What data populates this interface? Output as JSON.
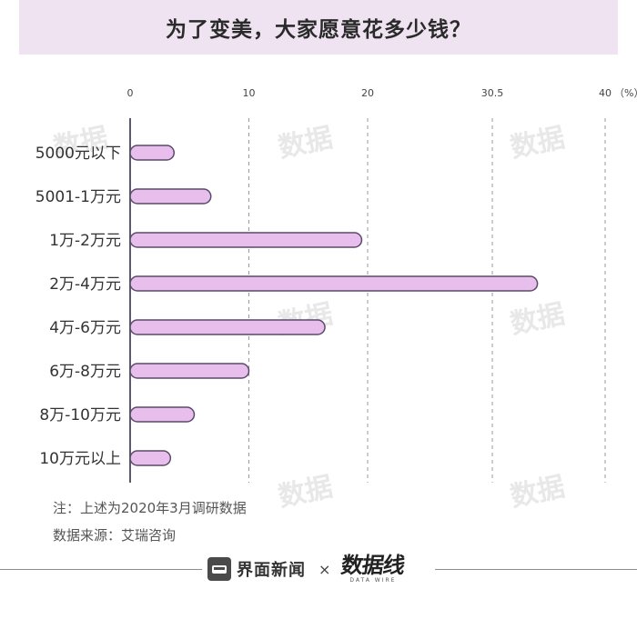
{
  "title": "为了变美，大家愿意花多少钱？",
  "chart_data": {
    "type": "bar",
    "orientation": "horizontal",
    "categories": [
      "5000元以下",
      "5001-1万元",
      "1万-2万元",
      "2万-4万元",
      "4万-6万元",
      "6万-8万元",
      "8万-10万元",
      "10万元以上"
    ],
    "values": [
      3.7,
      6.8,
      19.5,
      34.3,
      16.4,
      10.0,
      5.4,
      3.4
    ],
    "xlim": [
      0,
      40
    ],
    "x_ticks": [
      0,
      10,
      20,
      30.5,
      40
    ],
    "x_tick_labels": [
      "0",
      "10",
      "20",
      "30.5",
      "40"
    ],
    "x_unit": "（%）",
    "grid": "vertical dashed",
    "bar_color": "#e8bfec",
    "bar_stroke": "#5a4a6a"
  },
  "notes": {
    "note": "注：上述为2020年3月调研数据",
    "source": "数据来源：艾瑞咨询"
  },
  "footer": {
    "brand": "界面新闻",
    "times": "×",
    "logo": "数据线",
    "logo_sub": "DATA WIRE"
  },
  "colors": {
    "banner": "#efe2f1",
    "axis": "#5a5a6a"
  }
}
